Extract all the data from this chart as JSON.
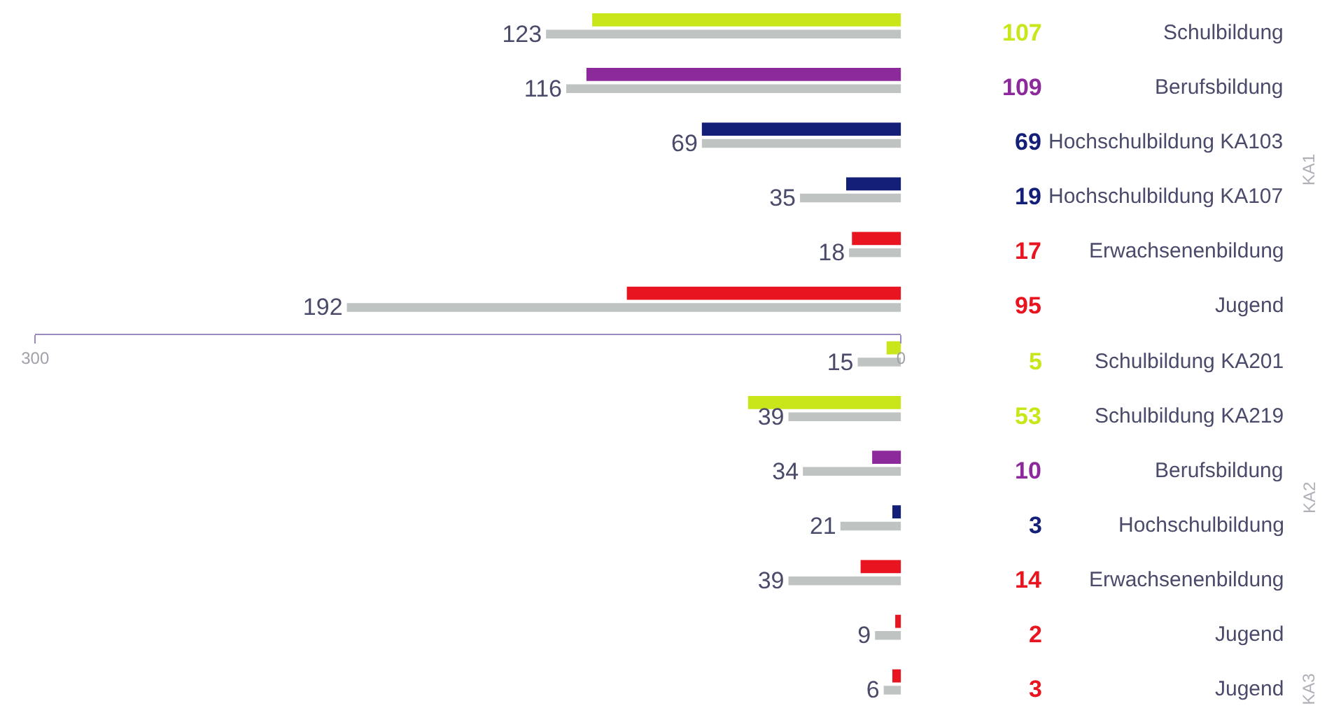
{
  "chart_data": {
    "type": "bar",
    "orientation": "horizontal",
    "categories": [
      "Schulbildung",
      "Berufsbildung",
      "Hochschulbildung KA103",
      "Hochschulbildung KA107",
      "Erwachsenenbildung",
      "Jugend",
      "Schulbildung KA201",
      "Schulbildung KA219",
      "Berufsbildung",
      "Hochschulbildung",
      "Erwachsenenbildung",
      "Jugend",
      "Jugend"
    ],
    "series": [
      {
        "colors": [
          "#c8e61a",
          "#8c2a9c",
          "#141f78",
          "#141f78",
          "#e81420",
          "#e81420",
          "#c8e61a",
          "#c8e61a",
          "#8c2a9c",
          "#141f78",
          "#e81420",
          "#e81420",
          "#e81420"
        ],
        "values": [
          107,
          109,
          69,
          19,
          17,
          95,
          5,
          53,
          10,
          3,
          14,
          2,
          3
        ]
      },
      {
        "color": "#bfc4c2",
        "values": [
          123,
          116,
          69,
          35,
          18,
          192,
          15,
          39,
          34,
          21,
          39,
          9,
          6
        ]
      }
    ],
    "xlim": [
      300,
      0
    ],
    "xticks": [
      300,
      0
    ],
    "data_labels": true,
    "tick_labels": "x",
    "annotations": [
      "KA1",
      "KA2",
      "KA3"
    ]
  }
}
